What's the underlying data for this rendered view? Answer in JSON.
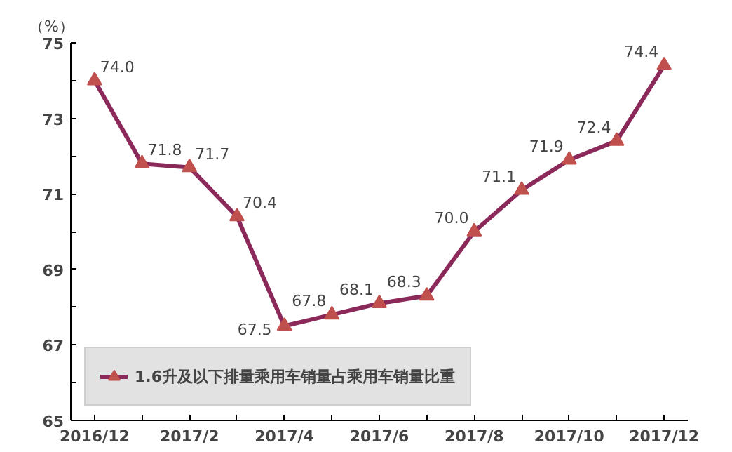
{
  "chart_data": {
    "type": "line",
    "ylabel": "（%）",
    "categories": [
      "2016/12",
      null,
      "2017/2",
      null,
      "2017/4",
      null,
      "2017/6",
      null,
      "2017/8",
      null,
      "2017/10",
      null,
      "2017/12"
    ],
    "series": [
      {
        "name": "1.6升及以下排量乘用车销量占乘用车销量比重",
        "color": "#8b2a5a",
        "values": [
          74.0,
          71.8,
          71.7,
          70.4,
          67.5,
          67.8,
          68.1,
          68.3,
          70.0,
          71.1,
          71.9,
          72.4,
          74.4
        ]
      }
    ],
    "ylim": [
      65,
      75
    ],
    "yticks": [
      65,
      {
        "value": 66,
        "label": null
      },
      67,
      {
        "value": 68,
        "label": null
      },
      69,
      {
        "value": 70,
        "label": null
      },
      71,
      {
        "value": 72,
        "label": null
      },
      73,
      {
        "value": 74,
        "label": null
      },
      75
    ],
    "value_labels": [
      "74.0",
      "71.8",
      "71.7",
      "70.4",
      "67.5",
      "67.8",
      "68.1",
      "68.3",
      "70.0",
      "71.1",
      "71.9",
      "72.4",
      "74.4"
    ],
    "grid": false,
    "legend": "bottom left",
    "marker": "triangle",
    "line_style": "solid"
  }
}
